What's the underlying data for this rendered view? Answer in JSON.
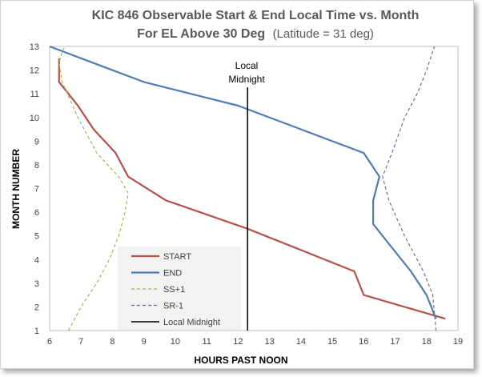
{
  "chart_data": {
    "type": "line",
    "title_bold_line1": "KIC 846 Observable Start & End Local Time vs. Month",
    "title_bold_line2": "For EL Above 30 Deg",
    "title_paren": "(Latitude = 31 deg)",
    "xlabel": "HOURS PAST NOON",
    "ylabel": "MONTH NUMBER",
    "xlim": [
      6,
      19
    ],
    "ylim": [
      1,
      13
    ],
    "x_ticks": [
      "6",
      "7",
      "8",
      "9",
      "10",
      "11",
      "12",
      "13",
      "14",
      "15",
      "16",
      "17",
      "18",
      "19"
    ],
    "y_ticks": [
      "1",
      "2",
      "3",
      "4",
      "5",
      "6",
      "7",
      "8",
      "9",
      "10",
      "11",
      "12",
      "13"
    ],
    "grid": false,
    "legend_position": "bottom-left",
    "annotation": {
      "line1": "Local",
      "line2": "Midnight",
      "x": 12.3
    },
    "series": [
      {
        "name": "START",
        "color": "#b5524a",
        "dash": "solid",
        "width": 2.2,
        "points": [
          [
            6.3,
            12.5
          ],
          [
            6.3,
            11.5
          ],
          [
            6.9,
            10.5
          ],
          [
            7.4,
            9.5
          ],
          [
            8.1,
            8.5
          ],
          [
            8.5,
            7.5
          ],
          [
            9.7,
            6.5
          ],
          [
            12.3,
            5.3
          ],
          [
            15.7,
            3.5
          ],
          [
            16.0,
            2.5
          ],
          [
            18.6,
            1.5
          ]
        ]
      },
      {
        "name": "END",
        "color": "#4f7bb3",
        "dash": "solid",
        "width": 2.2,
        "points": [
          [
            6.0,
            13.0
          ],
          [
            9.0,
            11.5
          ],
          [
            12.0,
            10.5
          ],
          [
            16.0,
            8.5
          ],
          [
            16.5,
            7.5
          ],
          [
            16.3,
            6.5
          ],
          [
            16.3,
            5.5
          ],
          [
            16.9,
            4.5
          ],
          [
            17.5,
            3.5
          ],
          [
            18.0,
            2.5
          ],
          [
            18.3,
            1.5
          ]
        ]
      },
      {
        "name": "SS+1",
        "color": "#9bbb59",
        "dash": "4,3",
        "width": 1.2,
        "points": [
          [
            6.6,
            1.0
          ],
          [
            7.0,
            2.0
          ],
          [
            7.5,
            3.0
          ],
          [
            7.9,
            4.0
          ],
          [
            8.2,
            5.0
          ],
          [
            8.4,
            6.0
          ],
          [
            8.5,
            6.8
          ],
          [
            8.2,
            7.5
          ],
          [
            7.5,
            8.5
          ],
          [
            6.9,
            10.0
          ],
          [
            6.4,
            11.5
          ],
          [
            6.3,
            12.3
          ],
          [
            6.4,
            12.8
          ],
          [
            6.5,
            13.0
          ]
        ]
      },
      {
        "name": "SR-1",
        "color": "#8064a2",
        "dash": "4,3",
        "width": 1.2,
        "points": [
          [
            18.3,
            1.0
          ],
          [
            18.2,
            2.5
          ],
          [
            17.9,
            3.5
          ],
          [
            17.3,
            5.0
          ],
          [
            16.8,
            6.5
          ],
          [
            16.6,
            7.5
          ],
          [
            16.9,
            8.5
          ],
          [
            17.3,
            10.0
          ],
          [
            17.7,
            11.0
          ],
          [
            18.0,
            12.0
          ],
          [
            18.2,
            12.8
          ],
          [
            18.25,
            13.0
          ]
        ]
      },
      {
        "name": "Local Midnight",
        "color": "#000000",
        "dash": "solid",
        "width": 1.5,
        "points": [
          [
            12.3,
            1.0
          ],
          [
            12.3,
            12.0
          ]
        ]
      }
    ]
  }
}
